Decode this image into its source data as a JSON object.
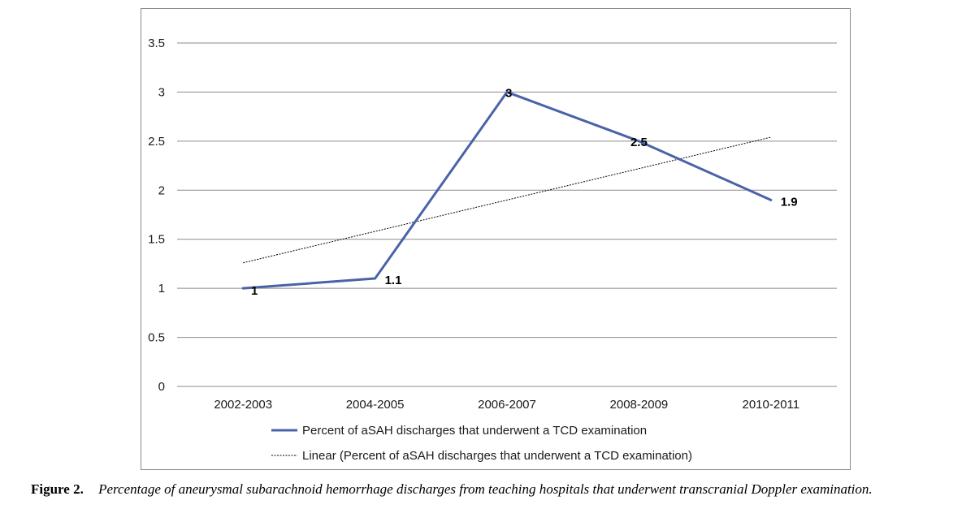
{
  "chart_data": {
    "type": "line",
    "categories": [
      "2002-2003",
      "2004-2005",
      "2006-2007",
      "2008-2009",
      "2010-2011"
    ],
    "series": [
      {
        "name": "Percent of aSAH discharges that underwent a TCD examination",
        "values": [
          1,
          1.1,
          3,
          2.5,
          1.9
        ],
        "data_labels": [
          "1",
          "1.1",
          "3",
          "2.5",
          "1.9"
        ],
        "color": "#4a63a8"
      }
    ],
    "trendline": {
      "name": "Linear (Percent of aSAH discharges that underwent a TCD examination)",
      "type": "linear",
      "start_value": 1.26,
      "end_value": 2.54,
      "color": "#000000"
    },
    "y_ticks": [
      "0",
      "0.5",
      "1",
      "1.5",
      "2",
      "2.5",
      "3",
      "3.5"
    ],
    "ylim": [
      0,
      3.5
    ],
    "grid": true,
    "legend_position": "bottom",
    "title": "",
    "xlabel": "",
    "ylabel": ""
  },
  "caption": {
    "label": "Figure 2.",
    "text": "Percentage of aneurysmal subarachnoid hemorrhage discharges from teaching hospitals that underwent transcranial Doppler examination."
  }
}
